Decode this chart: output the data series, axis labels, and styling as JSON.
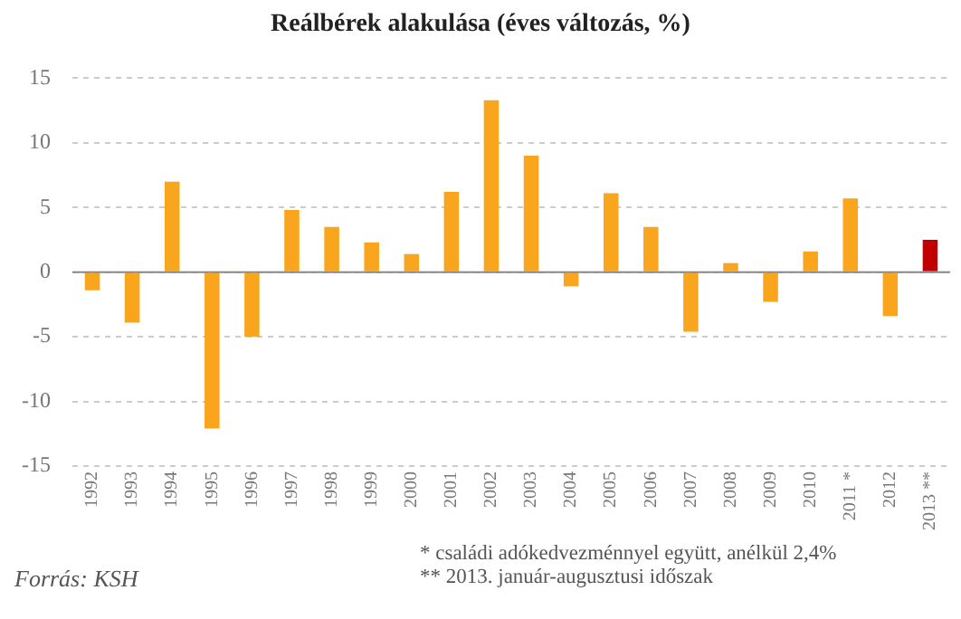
{
  "chart_data": {
    "type": "bar",
    "title": "Reálbérek alakulása (éves változás, %)",
    "categories": [
      "1992",
      "1993",
      "1994",
      "1995",
      "1996",
      "1997",
      "1998",
      "1999",
      "2000",
      "2001",
      "2002",
      "2003",
      "2004",
      "2005",
      "2006",
      "2007",
      "2008",
      "2009",
      "2010",
      "2011 *",
      "2012",
      "2013 **"
    ],
    "values": [
      -1.4,
      -3.9,
      7.0,
      -12.1,
      -5.0,
      4.8,
      3.5,
      2.3,
      1.4,
      6.2,
      13.3,
      9.0,
      -1.1,
      6.1,
      3.5,
      -4.6,
      0.7,
      -2.3,
      1.6,
      5.7,
      -3.4,
      2.5
    ],
    "colors": [
      "#f9a61e",
      "#f9a61e",
      "#f9a61e",
      "#f9a61e",
      "#f9a61e",
      "#f9a61e",
      "#f9a61e",
      "#f9a61e",
      "#f9a61e",
      "#f9a61e",
      "#f9a61e",
      "#f9a61e",
      "#f9a61e",
      "#f9a61e",
      "#f9a61e",
      "#f9a61e",
      "#f9a61e",
      "#f9a61e",
      "#f9a61e",
      "#f9a61e",
      "#f9a61e",
      "#c00000"
    ],
    "ylim": [
      -15,
      15
    ],
    "yticks": [
      -15,
      -10,
      -5,
      0,
      5,
      10,
      15
    ],
    "grid": "y",
    "legend": false,
    "annotations": [
      "* családi adókedvezménnyel együtt, anélkül 2,4%",
      "** 2013. január-augusztusi időszak",
      "Forrás: KSH"
    ]
  }
}
